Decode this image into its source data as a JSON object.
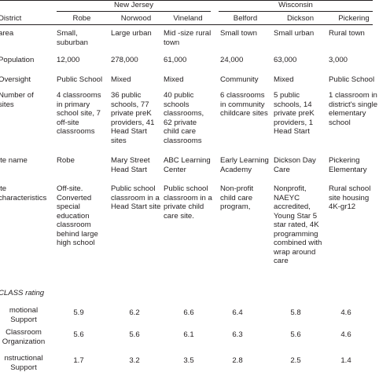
{
  "table": {
    "header": "District",
    "groups": [
      "New Jersey",
      "Wisconsin"
    ],
    "columns": [
      "Robe",
      "Norwood",
      "Vineland",
      "Belford",
      "Dickson",
      "Pickering"
    ],
    "rows": [
      {
        "label": "area",
        "cells": [
          "Small, suburban",
          "Large urban",
          "Mid -size rural town",
          "Small town",
          "Small urban",
          "Rural town"
        ]
      },
      {
        "label": "Population",
        "cells": [
          "12,000",
          "278,000",
          "61,000",
          "24,000",
          "63,000",
          "3,000"
        ]
      },
      {
        "label": "Oversight",
        "cells": [
          "Public School",
          "Mixed",
          "Mixed",
          "Community",
          "Mixed",
          "Public School"
        ]
      },
      {
        "label": "Number of sites",
        "cells": [
          "4 classrooms in primary school site, 7 off-site classrooms",
          "36 public schools, 77 private preK providers, 41 Head Start sites",
          "40 public schools classrooms, 62 private child care classrooms",
          "6 classrooms in community childcare sites",
          "5 public schools, 14 private preK providers, 1 Head Start",
          "1 classroom in district's single elementary school"
        ]
      },
      {
        "label": "ite name",
        "cells": [
          "Robe",
          "Mary Street Head Start",
          "ABC Learning Center",
          "Early Learning Academy",
          "Dickson Day Care",
          "Pickering Elementary"
        ]
      },
      {
        "label": "ite characteristics",
        "cells": [
          "Off-site. Converted special education classroom behind large high school",
          "Public school classroom in a Head Start site",
          "Public school classroom in a private child care site.",
          "Non-profit child care program,",
          "Nonprofit, NAEYC accredited, Young Star 5 star rated, 4K programming combined with wrap around care",
          "Rural school site housing 4K-gr12"
        ]
      }
    ],
    "section": "CLASS rating",
    "ratings": [
      {
        "label": "motional Support",
        "cells": [
          "5.9",
          "6.2",
          "6.6",
          "6.4",
          "5.8",
          "4.6"
        ]
      },
      {
        "label": "Classroom Organization",
        "cells": [
          "5.6",
          "5.6",
          "6.1",
          "6.3",
          "5.6",
          "4.6"
        ]
      },
      {
        "label": "nstructional Support",
        "cells": [
          "1.7",
          "3.2",
          "3.5",
          "2.8",
          "2.5",
          "1.4"
        ]
      }
    ]
  }
}
